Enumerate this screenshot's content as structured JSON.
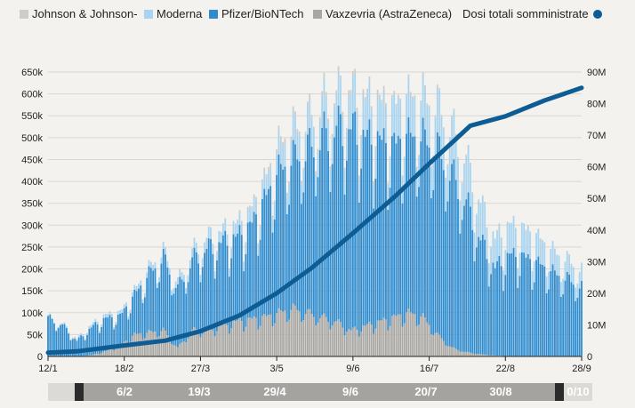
{
  "legend": {
    "items": [
      {
        "label": "Johnson & Johnson-",
        "color": "#cfcdca"
      },
      {
        "label": "Moderna",
        "color": "#a9d4f0"
      },
      {
        "label": "Pfizer/BioNTech",
        "color": "#2f8ccf"
      },
      {
        "label": "Vaxzevria (AstraZeneca)",
        "color": "#a9a7a3"
      }
    ],
    "total_label": "Dosi totali somministrate",
    "total_color": "#0d5c94"
  },
  "navigator": {
    "labels": [
      "6/2",
      "19/3",
      "29/4",
      "9/6",
      "20/7",
      "30/8",
      "0/10"
    ]
  },
  "chart_data": {
    "type": "bar",
    "x_type": "date",
    "x_start": "2021-01-12",
    "x_end": "2021-09-28",
    "x_ticks": [
      "12/1",
      "18/2",
      "27/3",
      "3/5",
      "9/6",
      "16/7",
      "22/8",
      "28/9"
    ],
    "y_left": {
      "ticks": [
        "0",
        "50k",
        "100k",
        "150k",
        "200k",
        "250k",
        "300k",
        "350k",
        "400k",
        "450k",
        "500k",
        "550k",
        "600k",
        "650k"
      ],
      "range": [
        0,
        650000
      ]
    },
    "y_right": {
      "ticks": [
        "0",
        "10M",
        "20M",
        "30M",
        "40M",
        "50M",
        "60M",
        "70M",
        "80M",
        "90M"
      ],
      "range": [
        0,
        90000000
      ]
    },
    "grid": true,
    "legend_position": "top",
    "stacked": true,
    "series_order": [
      "Vaxzevria (AstraZeneca)",
      "Pfizer/BioNTech",
      "Moderna",
      "Johnson & Johnson-"
    ],
    "weekly_profile": [
      {
        "date": "2021-01-12",
        "total": 90000,
        "vaxzevria": 0,
        "pfizer": 88000,
        "moderna": 2000,
        "jj": 0
      },
      {
        "date": "2021-01-19",
        "total": 75000,
        "vaxzevria": 0,
        "pfizer": 72000,
        "moderna": 3000,
        "jj": 0
      },
      {
        "date": "2021-01-26",
        "total": 40000,
        "vaxzevria": 0,
        "pfizer": 36000,
        "moderna": 4000,
        "jj": 0
      },
      {
        "date": "2021-02-02",
        "total": 72000,
        "vaxzevria": 3000,
        "pfizer": 63000,
        "moderna": 6000,
        "jj": 0
      },
      {
        "date": "2021-02-09",
        "total": 95000,
        "vaxzevria": 12000,
        "pfizer": 75000,
        "moderna": 8000,
        "jj": 0
      },
      {
        "date": "2021-02-16",
        "total": 100000,
        "vaxzevria": 25000,
        "pfizer": 67000,
        "moderna": 8000,
        "jj": 0
      },
      {
        "date": "2021-02-23",
        "total": 150000,
        "vaxzevria": 50000,
        "pfizer": 90000,
        "moderna": 10000,
        "jj": 0
      },
      {
        "date": "2021-03-02",
        "total": 200000,
        "vaxzevria": 55000,
        "pfizer": 132000,
        "moderna": 13000,
        "jj": 0
      },
      {
        "date": "2021-03-09",
        "total": 240000,
        "vaxzevria": 60000,
        "pfizer": 165000,
        "moderna": 15000,
        "jj": 0
      },
      {
        "date": "2021-03-16",
        "total": 170000,
        "vaxzevria": 20000,
        "pfizer": 135000,
        "moderna": 15000,
        "jj": 0
      },
      {
        "date": "2021-03-23",
        "total": 240000,
        "vaxzevria": 60000,
        "pfizer": 160000,
        "moderna": 20000,
        "jj": 0
      },
      {
        "date": "2021-03-30",
        "total": 270000,
        "vaxzevria": 60000,
        "pfizer": 185000,
        "moderna": 25000,
        "jj": 0
      },
      {
        "date": "2021-04-06",
        "total": 285000,
        "vaxzevria": 70000,
        "pfizer": 190000,
        "moderna": 25000,
        "jj": 0
      },
      {
        "date": "2021-04-13",
        "total": 300000,
        "vaxzevria": 80000,
        "pfizer": 190000,
        "moderna": 28000,
        "jj": 2000
      },
      {
        "date": "2021-04-20",
        "total": 330000,
        "vaxzevria": 85000,
        "pfizer": 210000,
        "moderna": 30000,
        "jj": 5000
      },
      {
        "date": "2021-04-27",
        "total": 400000,
        "vaxzevria": 90000,
        "pfizer": 265000,
        "moderna": 37000,
        "jj": 8000
      },
      {
        "date": "2021-05-04",
        "total": 480000,
        "vaxzevria": 100000,
        "pfizer": 320000,
        "moderna": 50000,
        "jj": 10000
      },
      {
        "date": "2021-05-11",
        "total": 520000,
        "vaxzevria": 110000,
        "pfizer": 340000,
        "moderna": 60000,
        "jj": 10000
      },
      {
        "date": "2021-05-18",
        "total": 540000,
        "vaxzevria": 100000,
        "pfizer": 370000,
        "moderna": 60000,
        "jj": 10000
      },
      {
        "date": "2021-05-25",
        "total": 580000,
        "vaxzevria": 90000,
        "pfizer": 410000,
        "moderna": 70000,
        "jj": 10000
      },
      {
        "date": "2021-06-01",
        "total": 600000,
        "vaxzevria": 80000,
        "pfizer": 440000,
        "moderna": 70000,
        "jj": 10000
      },
      {
        "date": "2021-06-08",
        "total": 610000,
        "vaxzevria": 60000,
        "pfizer": 460000,
        "moderna": 80000,
        "jj": 10000
      },
      {
        "date": "2021-06-15",
        "total": 590000,
        "vaxzevria": 70000,
        "pfizer": 430000,
        "moderna": 80000,
        "jj": 10000
      },
      {
        "date": "2021-06-22",
        "total": 580000,
        "vaxzevria": 80000,
        "pfizer": 410000,
        "moderna": 80000,
        "jj": 10000
      },
      {
        "date": "2021-06-29",
        "total": 570000,
        "vaxzevria": 90000,
        "pfizer": 390000,
        "moderna": 85000,
        "jj": 5000
      },
      {
        "date": "2021-07-06",
        "total": 590000,
        "vaxzevria": 100000,
        "pfizer": 400000,
        "moderna": 85000,
        "jj": 5000
      },
      {
        "date": "2021-07-13",
        "total": 590000,
        "vaxzevria": 90000,
        "pfizer": 405000,
        "moderna": 90000,
        "jj": 5000
      },
      {
        "date": "2021-07-20",
        "total": 570000,
        "vaxzevria": 50000,
        "pfizer": 420000,
        "moderna": 95000,
        "jj": 5000
      },
      {
        "date": "2021-07-27",
        "total": 520000,
        "vaxzevria": 20000,
        "pfizer": 395000,
        "moderna": 100000,
        "jj": 5000
      },
      {
        "date": "2021-08-03",
        "total": 450000,
        "vaxzevria": 10000,
        "pfizer": 340000,
        "moderna": 97000,
        "jj": 3000
      },
      {
        "date": "2021-08-10",
        "total": 350000,
        "vaxzevria": 5000,
        "pfizer": 260000,
        "moderna": 83000,
        "jj": 2000
      },
      {
        "date": "2021-08-17",
        "total": 270000,
        "vaxzevria": 2000,
        "pfizer": 200000,
        "moderna": 66000,
        "jj": 2000
      },
      {
        "date": "2021-08-24",
        "total": 300000,
        "vaxzevria": 1000,
        "pfizer": 230000,
        "moderna": 68000,
        "jj": 1000
      },
      {
        "date": "2021-08-31",
        "total": 290000,
        "vaxzevria": 1000,
        "pfizer": 225000,
        "moderna": 63000,
        "jj": 1000
      },
      {
        "date": "2021-09-07",
        "total": 270000,
        "vaxzevria": 1000,
        "pfizer": 210000,
        "moderna": 58000,
        "jj": 1000
      },
      {
        "date": "2021-09-14",
        "total": 240000,
        "vaxzevria": 1000,
        "pfizer": 190000,
        "moderna": 48000,
        "jj": 1000
      },
      {
        "date": "2021-09-21",
        "total": 220000,
        "vaxzevria": 1000,
        "pfizer": 175000,
        "moderna": 43000,
        "jj": 1000
      },
      {
        "date": "2021-09-28",
        "total": 200000,
        "vaxzevria": 1000,
        "pfizer": 160000,
        "moderna": 38000,
        "jj": 1000
      }
    ],
    "cumulative_total": [
      {
        "date": "2021-01-12",
        "value": 1200000
      },
      {
        "date": "2021-01-26",
        "value": 1600000
      },
      {
        "date": "2021-02-18",
        "value": 3500000
      },
      {
        "date": "2021-03-10",
        "value": 5000000
      },
      {
        "date": "2021-03-27",
        "value": 8000000
      },
      {
        "date": "2021-04-15",
        "value": 13000000
      },
      {
        "date": "2021-05-03",
        "value": 20000000
      },
      {
        "date": "2021-05-20",
        "value": 28000000
      },
      {
        "date": "2021-06-09",
        "value": 39000000
      },
      {
        "date": "2021-06-30",
        "value": 51000000
      },
      {
        "date": "2021-07-16",
        "value": 61000000
      },
      {
        "date": "2021-08-05",
        "value": 73000000
      },
      {
        "date": "2021-08-22",
        "value": 76000000
      },
      {
        "date": "2021-09-10",
        "value": 81000000
      },
      {
        "date": "2021-09-28",
        "value": 85000000
      }
    ]
  }
}
